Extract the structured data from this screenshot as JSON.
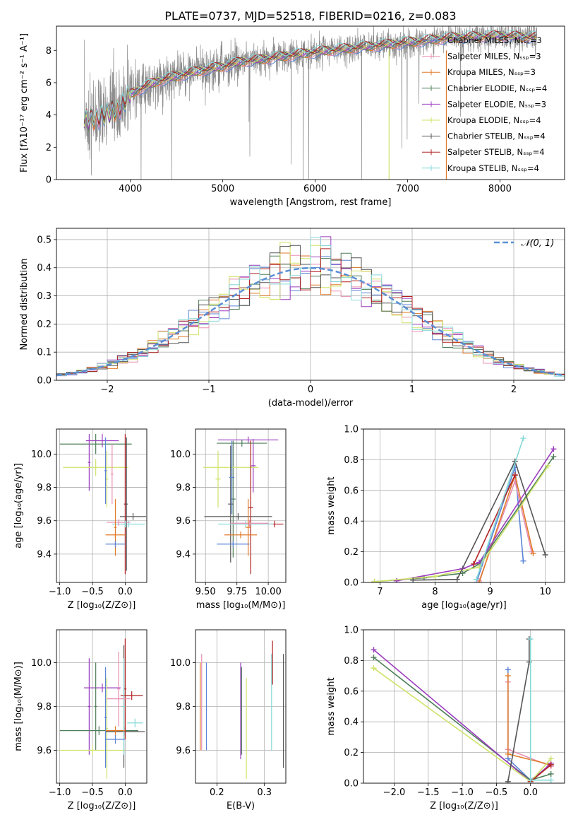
{
  "page": {
    "title": "PLATE=0737, MJD=52518, FIBERID=0216, z=0.083"
  },
  "colors": {
    "Chabrier MILES": "#5b84d6",
    "Salpeter MILES": "#e88fb2",
    "Kroupa MILES": "#e07a28",
    "Chabrier ELODIE": "#4f7f5a",
    "Salpeter ELODIE": "#9b3cbf",
    "Kroupa ELODIE": "#cfe36a",
    "Chabrier STELIB": "#555555",
    "Salpeter STELIB": "#b22222",
    "Kroupa STELIB": "#86d8d8",
    "data": "#8c8c8c",
    "normal": "#5b8fd6"
  },
  "chart_data": [
    {
      "id": "spectrum",
      "type": "line",
      "xlabel": "wavelength [Angstrom, rest frame]",
      "ylabel": "Flux [fλ10⁻¹⁷ erg cm⁻² s⁻¹ A⁻¹]",
      "xlim": [
        3200,
        8700
      ],
      "ylim": [
        0,
        9.5
      ],
      "xticks": [
        4000,
        5000,
        6000,
        7000,
        8000
      ],
      "yticks": [
        0,
        2,
        4,
        6,
        8
      ],
      "grid": false,
      "legend_position": "right",
      "legend": [
        "Chabrier MILES, Nₛₛₚ=3",
        "Salpeter MILES, Nₛₛₚ=3",
        "Kroupa MILES, Nₛₛₚ=3",
        "Chabrier ELODIE, Nₛₛₚ=4",
        "Salpeter ELODIE, Nₛₛₚ=3",
        "Kroupa ELODIE, Nₛₛₚ=4",
        "Chabrier STELIB, Nₛₛₚ=4",
        "Salpeter STELIB, Nₛₛₚ=4",
        "Kroupa STELIB, Nₛₛₚ=4"
      ],
      "continuum": {
        "x": [
          3500,
          3700,
          3900,
          4000,
          4100,
          4300,
          4500,
          4800,
          5000,
          5200,
          5500,
          6000,
          6500,
          7000,
          7500,
          8000,
          8400
        ],
        "y": [
          3.6,
          3.9,
          4.5,
          5.3,
          5.6,
          6.1,
          6.4,
          6.8,
          7.0,
          7.3,
          7.5,
          7.9,
          8.2,
          8.5,
          8.8,
          8.9,
          8.8
        ]
      }
    },
    {
      "id": "residual-hist",
      "type": "line",
      "xlabel": "(data-model)/error",
      "ylabel": "Normed distribution",
      "xlim": [
        -2.5,
        2.5
      ],
      "ylim": [
        0,
        0.54
      ],
      "xticks": [
        -2,
        -1,
        0,
        1,
        2
      ],
      "yticks": [
        0.0,
        0.1,
        0.2,
        0.3,
        0.4,
        0.5
      ],
      "grid": true,
      "legend_position": "top-right",
      "legend": [
        "𝒩(0, 1)"
      ]
    },
    {
      "id": "age-vs-Z",
      "type": "scatter",
      "xlabel": "Z [log₁₀(Z/Z⊙)]",
      "ylabel": "age  [log₁₀(age/yr)]",
      "xlim": [
        -1.05,
        0.33
      ],
      "ylim": [
        9.23,
        10.15
      ],
      "xticks": [
        -1.0,
        -0.5,
        0.0
      ],
      "yticks": [
        9.4,
        9.6,
        9.8,
        10.0
      ],
      "grid": true,
      "series": [
        {
          "model": "Chabrier ELODIE",
          "x": -0.45,
          "xerr": 0.55,
          "y": 10.06,
          "yerr": 0.06
        },
        {
          "model": "Salpeter ELODIE",
          "x": -0.35,
          "xerr": 0.25,
          "y": 10.08,
          "yerr": 0.04
        },
        {
          "model": "Salpeter ELODIE",
          "x": -0.55,
          "xerr": 0.02,
          "y": 9.95,
          "yerr": 0.17
        },
        {
          "model": "Kroupa ELODIE",
          "x": -0.45,
          "xerr": 0.5,
          "y": 9.92,
          "yerr": 0.05
        },
        {
          "model": "Kroupa ELODIE",
          "x": -0.28,
          "xerr": 0.02,
          "y": 9.85,
          "yerr": 0.17
        },
        {
          "model": "Chabrier MILES",
          "x": -0.3,
          "xerr": 0.02,
          "y": 9.9,
          "yerr": 0.2
        },
        {
          "model": "Salpeter MILES",
          "x": -0.2,
          "xerr": 0.02,
          "y": 9.88,
          "yerr": 0.18
        },
        {
          "model": "Chabrier STELIB",
          "x": 0.12,
          "xerr": 0.2,
          "y": 9.625,
          "yerr": 0.02
        },
        {
          "model": "Salpeter STELIB",
          "x": 0.0,
          "xerr": 0.02,
          "y": 9.7,
          "yerr": 0.42
        },
        {
          "model": "Kroupa STELIB",
          "x": 0.05,
          "xerr": 0.25,
          "y": 9.58,
          "yerr": 0.02
        },
        {
          "model": "Chabrier STELIB",
          "x": 0.02,
          "xerr": 0.02,
          "y": 9.7,
          "yerr": 0.4
        },
        {
          "model": "Salpeter MILES",
          "x": -0.1,
          "xerr": 0.18,
          "y": 9.59,
          "yerr": 0.02
        },
        {
          "model": "Kroupa MILES",
          "x": -0.15,
          "xerr": 0.15,
          "y": 9.515,
          "yerr": 0.02
        },
        {
          "model": "Kroupa MILES",
          "x": -0.15,
          "xerr": 0.02,
          "y": 9.56,
          "yerr": 0.17
        },
        {
          "model": "Chabrier MILES",
          "x": -0.15,
          "xerr": 0.15,
          "y": 9.46,
          "yerr": 0.02
        },
        {
          "model": "Kroupa STELIB",
          "x": 0.0,
          "xerr": 0.02,
          "y": 9.58,
          "yerr": 0.02
        }
      ]
    },
    {
      "id": "age-vs-mass",
      "type": "scatter",
      "xlabel": "mass [log₁₀(M/M⊙)]",
      "ylabel": "",
      "xlim": [
        9.42,
        10.14
      ],
      "ylim": [
        9.23,
        10.15
      ],
      "xticks": [
        9.5,
        9.75,
        10.0
      ],
      "xticklabels": [
        "9.50",
        "9.75",
        "10.00"
      ],
      "yticks": [
        9.4,
        9.6,
        9.8,
        10.0
      ],
      "grid": true,
      "series": [
        {
          "model": "Salpeter ELODIE",
          "x": 9.84,
          "xerr": 0.24,
          "y": 10.085,
          "yerr": 0.02
        },
        {
          "model": "Salpeter ELODIE",
          "x": 9.88,
          "xerr": 0.02,
          "y": 9.93,
          "yerr": 0.16
        },
        {
          "model": "Chabrier ELODIE",
          "x": 9.79,
          "xerr": 0.2,
          "y": 10.065,
          "yerr": 0.02
        },
        {
          "model": "Chabrier ELODIE",
          "x": 9.72,
          "xerr": 0.02,
          "y": 9.73,
          "yerr": 0.35
        },
        {
          "model": "Kroupa ELODIE",
          "x": 9.7,
          "xerr": 0.22,
          "y": 9.92,
          "yerr": 0.02
        },
        {
          "model": "Kroupa ELODIE",
          "x": 9.6,
          "xerr": 0.02,
          "y": 9.85,
          "yerr": 0.17
        },
        {
          "model": "Chabrier STELIB",
          "x": 9.76,
          "xerr": 0.27,
          "y": 9.625,
          "yerr": 0.02
        },
        {
          "model": "Chabrier STELIB",
          "x": 9.7,
          "xerr": 0.02,
          "y": 9.7,
          "yerr": 0.35
        },
        {
          "model": "Salpeter STELIB",
          "x": 10.05,
          "xerr": 0.07,
          "y": 9.58,
          "yerr": 0.02
        },
        {
          "model": "Salpeter STELIB",
          "x": 9.86,
          "xerr": 0.02,
          "y": 9.68,
          "yerr": 0.4
        },
        {
          "model": "Kroupa STELIB",
          "x": 9.82,
          "xerr": 0.22,
          "y": 9.58,
          "yerr": 0.02
        },
        {
          "model": "Salpeter MILES",
          "x": 9.85,
          "xerr": 0.15,
          "y": 9.585,
          "yerr": 0.02
        },
        {
          "model": "Kroupa MILES",
          "x": 9.78,
          "xerr": 0.13,
          "y": 9.515,
          "yerr": 0.02
        },
        {
          "model": "Kroupa MILES",
          "x": 9.84,
          "xerr": 0.02,
          "y": 9.56,
          "yerr": 0.17
        },
        {
          "model": "Chabrier MILES",
          "x": 9.72,
          "xerr": 0.13,
          "y": 9.46,
          "yerr": 0.02
        },
        {
          "model": "Chabrier MILES",
          "x": 9.71,
          "xerr": 0.02,
          "y": 9.86,
          "yerr": 0.22
        }
      ]
    },
    {
      "id": "mass-weight-vs-age",
      "type": "line",
      "xlabel": "age  [log₁₀(age/yr)]",
      "ylabel": "mass weight",
      "xlim": [
        6.7,
        10.35
      ],
      "ylim": [
        0,
        1.0
      ],
      "xticks": [
        7,
        8,
        9,
        10
      ],
      "yticks": [
        0.0,
        0.2,
        0.4,
        0.6,
        0.8,
        1.0
      ],
      "grid": true,
      "series": [
        {
          "name": "Chabrier MILES",
          "x": [
            8.75,
            9.45,
            9.6
          ],
          "y": [
            0.0,
            0.75,
            0.14
          ]
        },
        {
          "name": "Salpeter MILES",
          "x": [
            8.8,
            9.45,
            9.75
          ],
          "y": [
            0.01,
            0.66,
            0.2
          ]
        },
        {
          "name": "Kroupa MILES",
          "x": [
            8.8,
            9.45,
            9.78
          ],
          "y": [
            0.0,
            0.7,
            0.19
          ]
        },
        {
          "name": "Chabrier ELODIE",
          "x": [
            6.9,
            7.8,
            8.5,
            8.8,
            10.15
          ],
          "y": [
            0.005,
            0.03,
            0.06,
            0.12,
            0.82
          ]
        },
        {
          "name": "Salpeter ELODIE",
          "x": [
            7.3,
            8.5,
            8.8,
            10.15
          ],
          "y": [
            0.01,
            0.09,
            0.13,
            0.87
          ]
        },
        {
          "name": "Kroupa ELODIE",
          "x": [
            6.9,
            8.0,
            8.8,
            10.05
          ],
          "y": [
            0.005,
            0.04,
            0.1,
            0.76
          ]
        },
        {
          "name": "Chabrier STELIB",
          "x": [
            7.6,
            8.4,
            9.45,
            10.0
          ],
          "y": [
            0.015,
            0.02,
            0.79,
            0.18
          ]
        },
        {
          "name": "Salpeter STELIB",
          "x": [
            8.7,
            9.45
          ],
          "y": [
            0.12,
            0.7
          ]
        },
        {
          "name": "Kroupa STELIB",
          "x": [
            8.75,
            9.6
          ],
          "y": [
            0.02,
            0.94
          ]
        }
      ]
    },
    {
      "id": "mass-vs-Z",
      "type": "scatter",
      "xlabel": "Z [log₁₀(Z/Z⊙)]",
      "ylabel": "mass [log₁₀(M/M⊙)]",
      "xlim": [
        -1.05,
        0.33
      ],
      "ylim": [
        9.45,
        10.15
      ],
      "xticks": [
        -1.0,
        -0.5,
        0.0
      ],
      "yticks": [
        9.6,
        9.8,
        10.0
      ],
      "grid": true,
      "series": [
        {
          "model": "Salpeter ELODIE",
          "x": -0.35,
          "xerr": 0.28,
          "y": 9.885,
          "yerr": 0.02
        },
        {
          "model": "Salpeter ELODIE",
          "x": -0.55,
          "xerr": 0.02,
          "y": 9.8,
          "yerr": 0.22
        },
        {
          "model": "Chabrier ELODIE",
          "x": -0.4,
          "xerr": 0.6,
          "y": 9.69,
          "yerr": 0.02
        },
        {
          "model": "Chabrier ELODIE",
          "x": -0.45,
          "xerr": 0.02,
          "y": 9.8,
          "yerr": 0.2
        },
        {
          "model": "Kroupa ELODIE",
          "x": -0.5,
          "xerr": 0.5,
          "y": 9.6,
          "yerr": 0.02
        },
        {
          "model": "Kroupa ELODIE",
          "x": -0.28,
          "xerr": 0.02,
          "y": 9.7,
          "yerr": 0.23
        },
        {
          "model": "Chabrier STELIB",
          "x": 0.0,
          "xerr": 0.3,
          "y": 9.685,
          "yerr": 0.02
        },
        {
          "model": "Chabrier STELIB",
          "x": -0.02,
          "xerr": 0.02,
          "y": 9.8,
          "yerr": 0.28
        },
        {
          "model": "Salpeter STELIB",
          "x": 0.1,
          "xerr": 0.17,
          "y": 9.85,
          "yerr": 0.02
        },
        {
          "model": "Salpeter STELIB",
          "x": 0.0,
          "xerr": 0.02,
          "y": 9.88,
          "yerr": 0.23
        },
        {
          "model": "Kroupa STELIB",
          "x": 0.15,
          "xerr": 0.12,
          "y": 9.725,
          "yerr": 0.02
        },
        {
          "model": "Kroupa STELIB",
          "x": -0.02,
          "xerr": 0.02,
          "y": 9.8,
          "yerr": 0.22
        },
        {
          "model": "Salpeter MILES",
          "x": -0.1,
          "xerr": 0.18,
          "y": 9.835,
          "yerr": 0.02
        },
        {
          "model": "Salpeter MILES",
          "x": -0.1,
          "xerr": 0.02,
          "y": 9.88,
          "yerr": 0.17
        },
        {
          "model": "Chabrier MILES",
          "x": -0.15,
          "xerr": 0.15,
          "y": 9.65,
          "yerr": 0.02
        },
        {
          "model": "Chabrier MILES",
          "x": -0.3,
          "xerr": 0.02,
          "y": 9.75,
          "yerr": 0.23
        },
        {
          "model": "Kroupa MILES",
          "x": -0.15,
          "xerr": 0.15,
          "y": 9.69,
          "yerr": 0.02
        }
      ]
    },
    {
      "id": "mass-vs-EBV",
      "type": "scatter",
      "xlabel": "E(B-V)",
      "ylabel": "",
      "xlim": [
        0.155,
        0.345
      ],
      "ylim": [
        9.45,
        10.15
      ],
      "xticks": [
        0.2,
        0.3
      ],
      "yticks": [
        9.6,
        9.8,
        10.0
      ],
      "grid": true,
      "series": [
        {
          "model": "Salpeter MILES",
          "x": 0.168,
          "yerr": 0.22,
          "y": 9.82
        },
        {
          "model": "Kroupa MILES",
          "x": 0.165,
          "yerr": 0.2,
          "y": 9.8
        },
        {
          "model": "Chabrier MILES",
          "x": 0.178,
          "yerr": 0.2,
          "y": 9.8
        },
        {
          "model": "Salpeter ELODIE",
          "x": 0.25,
          "yerr": 0.22,
          "y": 9.78
        },
        {
          "model": "Chabrier ELODIE",
          "x": 0.252,
          "yerr": 0.2,
          "y": 9.78
        },
        {
          "model": "Kroupa ELODIE",
          "x": 0.262,
          "yerr": 0.23,
          "y": 9.7
        },
        {
          "model": "Kroupa STELIB",
          "x": 0.315,
          "yerr": 0.22,
          "y": 9.82
        },
        {
          "model": "Salpeter STELIB",
          "x": 0.317,
          "yerr": 0.1,
          "y": 10.0
        },
        {
          "model": "Chabrier STELIB",
          "x": 0.34,
          "yerr": 0.26,
          "y": 9.78
        }
      ]
    },
    {
      "id": "mass-weight-vs-Z",
      "type": "line",
      "xlabel": "Z [log₁₀(Z/Z⊙)]",
      "ylabel": "mass weight",
      "xlim": [
        -2.45,
        0.5
      ],
      "ylim": [
        0,
        1.0
      ],
      "xticks": [
        -2.0,
        -1.5,
        -1.0,
        -0.5,
        0.0
      ],
      "yticks": [
        0.0,
        0.2,
        0.4,
        0.6,
        0.8,
        1.0
      ],
      "grid": true,
      "series": [
        {
          "name": "Chabrier MILES",
          "x": [
            -0.33,
            -0.33,
            0.0,
            0.3
          ],
          "y": [
            0.74,
            0.16,
            0.02,
            0.12
          ]
        },
        {
          "name": "Salpeter MILES",
          "x": [
            -0.33,
            -0.33,
            0.3
          ],
          "y": [
            0.66,
            0.22,
            0.11
          ]
        },
        {
          "name": "Kroupa MILES",
          "x": [
            -0.33,
            -0.33,
            0.3
          ],
          "y": [
            0.7,
            0.19,
            0.12
          ]
        },
        {
          "name": "Chabrier ELODIE",
          "x": [
            -2.3,
            0.0,
            0.3
          ],
          "y": [
            0.82,
            0.02,
            0.06
          ]
        },
        {
          "name": "Salpeter ELODIE",
          "x": [
            -2.3,
            0.0,
            0.3
          ],
          "y": [
            0.87,
            0.01,
            0.13
          ]
        },
        {
          "name": "Kroupa ELODIE",
          "x": [
            -2.3,
            0.0,
            0.3
          ],
          "y": [
            0.75,
            0.01,
            0.16
          ]
        },
        {
          "name": "Chabrier STELIB",
          "x": [
            -0.02,
            -0.02,
            -0.33
          ],
          "y": [
            0.94,
            0.79,
            0.01
          ]
        },
        {
          "name": "Salpeter STELIB",
          "x": [
            0.0,
            0.3
          ],
          "y": [
            0.01,
            0.12
          ]
        },
        {
          "name": "Kroupa STELIB",
          "x": [
            0.0,
            0.0,
            0.3
          ],
          "y": [
            0.94,
            0.02,
            0.02
          ]
        }
      ]
    }
  ]
}
